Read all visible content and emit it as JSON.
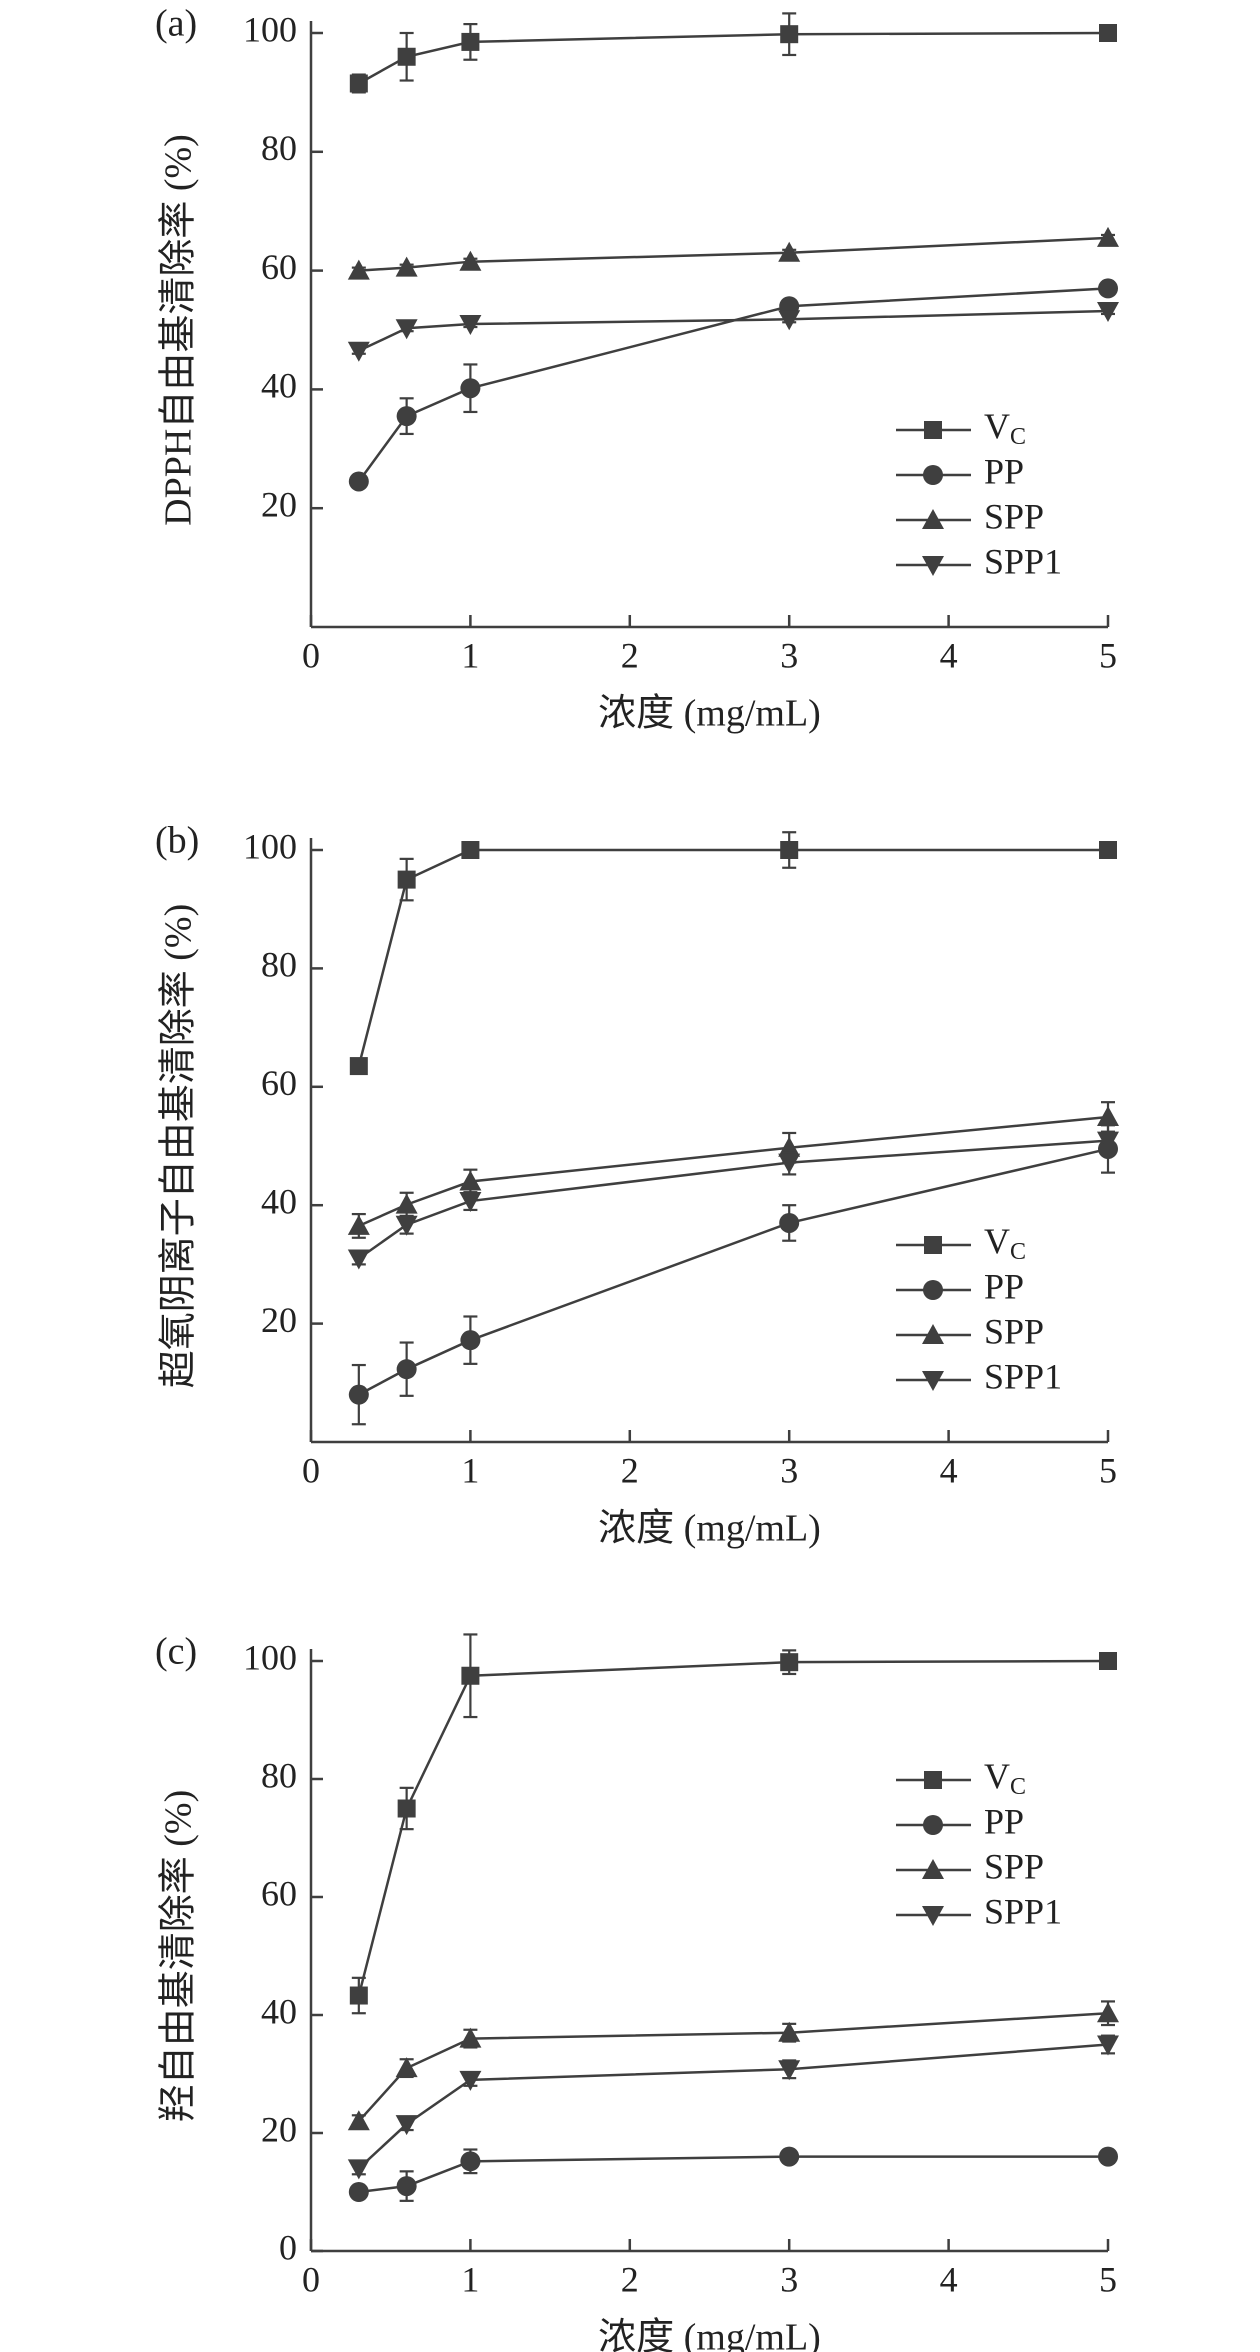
{
  "chart_data": [
    {
      "type": "line",
      "panel_label": "(a)",
      "y_label": "DPPH自由基清除率 (%)",
      "x_label": "浓度 (mg/mL)",
      "x": [
        0.3,
        0.6,
        1,
        3,
        5
      ],
      "xlim": [
        0,
        5
      ],
      "xticks": [
        0,
        1,
        2,
        3,
        4,
        5
      ],
      "ylim": [
        0,
        100
      ],
      "yticks": [
        20,
        40,
        60,
        80,
        100
      ],
      "color": "#3f3f3f",
      "series": [
        {
          "name": "VC",
          "marker": "square",
          "values": [
            91.5,
            96,
            98.5,
            99.8,
            100
          ],
          "errors": [
            1.5,
            4,
            3,
            3.5,
            0.5
          ]
        },
        {
          "name": "PP",
          "marker": "circle",
          "values": [
            24.5,
            35.5,
            40.2,
            54,
            57
          ],
          "errors": [
            0.5,
            3,
            4,
            0.5,
            1
          ]
        },
        {
          "name": "SPP",
          "marker": "triangle-up",
          "values": [
            60,
            60.5,
            61.5,
            63,
            65.5
          ],
          "errors": [
            0.5,
            0.5,
            0.5,
            0.5,
            0.5
          ]
        },
        {
          "name": "SPP1",
          "marker": "triangle-down",
          "values": [
            46.5,
            50.3,
            51,
            51.8,
            53.2
          ],
          "errors": [
            0.5,
            0.5,
            0.5,
            0.5,
            0.5
          ]
        }
      ]
    },
    {
      "type": "line",
      "panel_label": "(b)",
      "y_label": "超氧阴离子自由基清除率 (%)",
      "x_label": "浓度 (mg/mL)",
      "x": [
        0.3,
        0.6,
        1,
        3,
        5
      ],
      "xlim": [
        0,
        5
      ],
      "xticks": [
        0,
        1,
        2,
        3,
        4,
        5
      ],
      "ylim": [
        0,
        100
      ],
      "yticks": [
        20,
        40,
        60,
        80,
        100
      ],
      "color": "#3f3f3f",
      "series": [
        {
          "name": "VC",
          "marker": "square",
          "values": [
            63.5,
            95,
            100,
            100,
            100
          ],
          "errors": [
            1,
            3.5,
            0.5,
            3,
            0.3
          ]
        },
        {
          "name": "PP",
          "marker": "circle",
          "values": [
            8,
            12.3,
            17.2,
            37,
            49.5
          ],
          "errors": [
            5,
            4.5,
            4,
            3,
            4
          ]
        },
        {
          "name": "SPP",
          "marker": "triangle-up",
          "values": [
            36.5,
            40.1,
            44,
            49.7,
            54.9
          ],
          "errors": [
            2,
            2,
            2,
            2.5,
            2.5
          ]
        },
        {
          "name": "SPP1",
          "marker": "triangle-down",
          "values": [
            31,
            36.7,
            40.7,
            47.2,
            50.9
          ],
          "errors": [
            1,
            1.5,
            1.5,
            2,
            1.5
          ]
        }
      ]
    },
    {
      "type": "line",
      "panel_label": "(c)",
      "y_label": "羟自由基清除率 (%)",
      "x_label": "浓度 (mg/mL)",
      "x": [
        0.3,
        0.6,
        1,
        3,
        5
      ],
      "xlim": [
        0,
        5
      ],
      "xticks": [
        0,
        1,
        2,
        3,
        4,
        5
      ],
      "ylim": [
        0,
        100
      ],
      "yticks": [
        0,
        20,
        40,
        60,
        80,
        100
      ],
      "color": "#3f3f3f",
      "series": [
        {
          "name": "VC",
          "marker": "square",
          "values": [
            43.3,
            75,
            97.5,
            99.8,
            100
          ],
          "errors": [
            3,
            3.5,
            7,
            2,
            0.5
          ]
        },
        {
          "name": "PP",
          "marker": "circle",
          "values": [
            10,
            11,
            15.2,
            16,
            16
          ],
          "errors": [
            1,
            2.5,
            2,
            0.5,
            1
          ]
        },
        {
          "name": "SPP",
          "marker": "triangle-up",
          "values": [
            22,
            31,
            36,
            37,
            40.3
          ],
          "errors": [
            1,
            1.5,
            1.5,
            1.5,
            2
          ]
        },
        {
          "name": "SPP1",
          "marker": "triangle-down",
          "values": [
            14,
            21.5,
            29,
            30.8,
            35
          ],
          "errors": [
            1,
            1,
            1,
            1.5,
            1.5
          ]
        }
      ]
    }
  ]
}
